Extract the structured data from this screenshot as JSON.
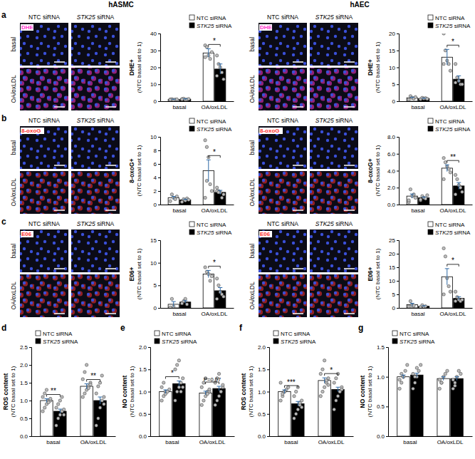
{
  "section_titles": [
    "hASMC",
    "hAEC"
  ],
  "panel_labels": [
    "a",
    "b",
    "c",
    "d",
    "e",
    "f",
    "g"
  ],
  "image_panels": [
    {
      "stain": "DHE",
      "color": "#ff33cc",
      "columns": [
        "NTC siRNA",
        "STK25 siRNA"
      ],
      "rows": [
        "basal",
        "OA/oxLDL"
      ]
    },
    {
      "stain": "DHE",
      "color": "#ff33cc",
      "columns": [
        "NTC siRNA",
        "STK25 siRNA"
      ],
      "rows": [
        "basal",
        "OA/oxLDL"
      ]
    },
    {
      "stain": "8-oxoG",
      "color": "#ff3030",
      "columns": [
        "NTC siRNA",
        "STK25 siRNA"
      ],
      "rows": [
        "basal",
        "OA/oxLDL"
      ]
    },
    {
      "stain": "8-oxoG",
      "color": "#ff3030",
      "columns": [
        "NTC siRNA",
        "STK25 siRNA"
      ],
      "rows": [
        "basal",
        "OA/oxLDL"
      ]
    },
    {
      "stain": "E06",
      "color": "#ff3030",
      "columns": [
        "NTC siRNA",
        "STK25 siRNA"
      ],
      "rows": [
        "basal",
        "OA/oxLDL"
      ]
    },
    {
      "stain": "E06",
      "color": "#ff3030",
      "columns": [
        "NTC siRNA",
        "STK25 siRNA"
      ],
      "rows": [
        "basal",
        "OA/oxLDL"
      ]
    }
  ],
  "chart_data": [
    {
      "type": "bar",
      "y_label": [
        "DHE+",
        "(NTC basal set to 1)"
      ],
      "categories": [
        "basal",
        "OA/oxLDL"
      ],
      "series": [
        {
          "name": "NTC siRNA",
          "color": "#ffffff",
          "values": [
            1,
            28.5
          ],
          "errors": [
            0.2,
            2.5
          ],
          "points": [
            [
              1,
              1.2,
              0.8,
              1,
              1.1,
              0.9
            ],
            [
              33,
              32,
              27,
              25,
              29,
              26
            ]
          ]
        },
        {
          "name": "STK25 siRNA",
          "color": "#000000",
          "values": [
            1.2,
            19
          ],
          "errors": [
            0.2,
            3
          ],
          "points": [
            [
              1.2,
              1.5,
              0.9,
              1,
              1.3,
              1.1
            ],
            [
              27,
              22,
              20,
              17,
              13,
              15
            ]
          ]
        }
      ],
      "ylim": [
        0,
        40
      ],
      "yticks": [
        0,
        10,
        20,
        30,
        40
      ],
      "legend": "top-right",
      "annotations": [
        {
          "x": "OA/oxLDL",
          "text": "*"
        }
      ]
    },
    {
      "type": "bar",
      "y_label": [
        "DHE+",
        "(NTC basal set to 1)"
      ],
      "categories": [
        "basal",
        "OA/oxLDL"
      ],
      "series": [
        {
          "name": "NTC siRNA",
          "color": "#ffffff",
          "values": [
            1,
            13
          ],
          "errors": [
            0.2,
            2.3
          ],
          "points": [
            [
              0.5,
              1.5,
              1,
              0.8,
              1.2
            ],
            [
              20,
              15,
              12,
              11,
              9,
              11
            ]
          ]
        },
        {
          "name": "STK25 siRNA",
          "color": "#000000",
          "values": [
            0.8,
            6.5
          ],
          "errors": [
            0.1,
            1
          ],
          "points": [
            [
              0.6,
              1,
              0.8,
              0.9,
              0.7
            ],
            [
              11,
              7,
              6,
              5,
              5,
              5.5
            ]
          ]
        }
      ],
      "ylim": [
        0,
        20
      ],
      "yticks": [
        0,
        5,
        10,
        15,
        20
      ],
      "legend": "top-right",
      "annotations": [
        {
          "x": "OA/oxLDL",
          "text": "*"
        }
      ]
    },
    {
      "type": "bar",
      "y_label": [
        "8-oxoG+",
        "(NTC basal set to 1)"
      ],
      "categories": [
        "basal",
        "OA/oxLDL"
      ],
      "series": [
        {
          "name": "NTC siRNA",
          "color": "#ffffff",
          "values": [
            1,
            5
          ],
          "errors": [
            0.2,
            1.6
          ],
          "points": [
            [
              0.5,
              1.5,
              1,
              0.8,
              1.2
            ],
            [
              9.5,
              8.5,
              7,
              3,
              2,
              1,
              3.5
            ]
          ]
        },
        {
          "name": "STK25 siRNA",
          "color": "#000000",
          "values": [
            0.7,
            1.8
          ],
          "errors": [
            0.1,
            0.3
          ],
          "points": [
            [
              0.4,
              0.8,
              0.6,
              0.9,
              0.7
            ],
            [
              2.5,
              2,
              1.8,
              1,
              1.5,
              2,
              1.8
            ]
          ]
        }
      ],
      "ylim": [
        0,
        10
      ],
      "yticks": [
        0,
        2,
        4,
        6,
        8,
        10
      ],
      "legend": "top-right",
      "annotations": [
        {
          "x": "OA/oxLDL",
          "text": "*"
        }
      ]
    },
    {
      "type": "bar",
      "y_label": [
        "8-oxoG+",
        "(NTC basal set to 1)"
      ],
      "categories": [
        "basal",
        "OA/oxLDL"
      ],
      "series": [
        {
          "name": "NTC siRNA",
          "color": "#ffffff",
          "values": [
            1,
            4.3
          ],
          "errors": [
            0.25,
            0.4
          ],
          "points": [
            [
              0.3,
              1.8,
              1,
              1.2,
              0.8,
              0.5
            ],
            [
              5.5,
              5,
              4.5,
              4.2,
              3.8,
              3
            ]
          ]
        },
        {
          "name": "STK25 siRNA",
          "color": "#000000",
          "values": [
            0.8,
            2.2
          ],
          "errors": [
            0.1,
            0.4
          ],
          "points": [
            [
              0.5,
              1,
              0.8,
              0.7,
              1.1,
              0.6
            ],
            [
              3.5,
              3,
              2.3,
              2,
              1.5,
              1.2
            ]
          ]
        }
      ],
      "ylim": [
        0,
        8
      ],
      "yticks": [
        {
          "value": 0,
          "label": "0.0"
        },
        {
          "value": 2,
          "label": "2.0"
        },
        {
          "value": 4,
          "label": "4.0"
        },
        {
          "value": 6,
          "label": "6.0"
        },
        {
          "value": 8,
          "label": "8.0"
        }
      ],
      "legend": "top-right",
      "annotations": [
        {
          "x": "OA/oxLDL",
          "text": "**"
        }
      ]
    },
    {
      "type": "bar",
      "y_label": [
        "E06+",
        "(NTC basal set to 1)"
      ],
      "categories": [
        "basal",
        "OA/oxLDL"
      ],
      "series": [
        {
          "name": "NTC siRNA",
          "color": "#ffffff",
          "values": [
            0.8,
            7.5
          ],
          "errors": [
            0.6,
            0.8
          ],
          "points": [
            [
              0.1,
              2,
              0.3
            ],
            [
              9,
              8,
              7.5,
              6,
              7
            ]
          ]
        },
        {
          "name": "STK25 siRNA",
          "color": "#000000",
          "values": [
            1.3,
            3.8
          ],
          "errors": [
            0.3,
            0.7
          ],
          "points": [
            [
              1,
              1.5,
              2,
              0.8
            ],
            [
              6.5,
              5,
              3.5,
              3,
              2.5,
              2
            ]
          ]
        }
      ],
      "ylim": [
        0,
        15
      ],
      "yticks": [
        0,
        5,
        10,
        15
      ],
      "legend": "top-right",
      "annotations": [
        {
          "x": "OA/oxLDL",
          "text": "*"
        }
      ]
    },
    {
      "type": "bar",
      "y_label": [
        "E06+",
        "(NTC basal set to 1)"
      ],
      "categories": [
        "basal",
        "OA/oxLDL"
      ],
      "series": [
        {
          "name": "NTC siRNA",
          "color": "#ffffff",
          "values": [
            1.2,
            11.5
          ],
          "errors": [
            0.5,
            3
          ],
          "points": [
            [
              0.5,
              2.5,
              1,
              0.8
            ],
            [
              22,
              19,
              11,
              8,
              6,
              5
            ]
          ]
        },
        {
          "name": "STK25 siRNA",
          "color": "#000000",
          "values": [
            0.6,
            3.5
          ],
          "errors": [
            0.2,
            0.6
          ],
          "points": [
            [
              0.3,
              1,
              0.4,
              0.6
            ],
            [
              6,
              4,
              3,
              2.5,
              3,
              2.5
            ]
          ]
        }
      ],
      "ylim": [
        0,
        25
      ],
      "yticks": [
        0,
        5,
        10,
        15,
        20,
        25
      ],
      "legend": "top-right",
      "annotations": [
        {
          "x": "OA/oxLDL",
          "text": "*"
        }
      ]
    },
    {
      "type": "bar",
      "y_label": [
        "ROS content",
        "(NTC basal set to 1)"
      ],
      "categories": [
        "basal",
        "OA/oxLDL"
      ],
      "series": [
        {
          "name": "NTC siRNA",
          "color": "#ffffff",
          "values": [
            1.0,
            1.4
          ],
          "errors": [
            0.05,
            0.07
          ],
          "points": [
            [
              0.7,
              0.8,
              0.9,
              1,
              1,
              1.1,
              1.2,
              1.3,
              0.95,
              1.05
            ],
            [
              1.1,
              1.2,
              1.3,
              1.4,
              1.5,
              1.6,
              1.8,
              2.0,
              1.35,
              1.45
            ]
          ]
        },
        {
          "name": "STK25 siRNA",
          "color": "#000000",
          "values": [
            0.7,
            1.0
          ],
          "errors": [
            0.06,
            0.1
          ],
          "points": [
            [
              0.3,
              0.5,
              0.6,
              0.7,
              0.75,
              0.8,
              0.9,
              1,
              1.1,
              0.6
            ],
            [
              0.3,
              0.5,
              0.8,
              1,
              1.1,
              1.2,
              1.4,
              1.5,
              1.7,
              0.9
            ]
          ]
        }
      ],
      "ylim": [
        0,
        2.5
      ],
      "yticks": [
        {
          "value": 0,
          "label": "0.0"
        },
        0.5,
        {
          "value": 1,
          "label": "1.0"
        },
        1.5,
        {
          "value": 2,
          "label": "2.0"
        },
        2.5
      ],
      "legend": "top-left",
      "annotations": [
        {
          "x": "basal",
          "text": "**"
        },
        {
          "x": "OA/oxLDL",
          "text": "**"
        }
      ]
    },
    {
      "type": "bar",
      "y_label": [
        "NO content",
        "(NTC basal set to 1)"
      ],
      "categories": [
        "basal",
        "OA/oxLDL"
      ],
      "series": [
        {
          "name": "NTC siRNA",
          "color": "#ffffff",
          "values": [
            1.0,
            0.97
          ],
          "errors": [
            0.04,
            0.04
          ],
          "points": [
            [
              0.8,
              0.9,
              1,
              1,
              1.05,
              1.1,
              1.2,
              0.95
            ],
            [
              0.7,
              0.8,
              0.9,
              1,
              1,
              1.1,
              1.2,
              1.3,
              0.95,
              1.05
            ]
          ]
        },
        {
          "name": "STK25 siRNA",
          "color": "#000000",
          "values": [
            1.18,
            1.07
          ],
          "errors": [
            0.06,
            0.05
          ],
          "points": [
            [
              0.8,
              1,
              1.1,
              1.2,
              1.3,
              1.5,
              1.6,
              1.7,
              1.0,
              1.1
            ],
            [
              0.7,
              0.8,
              0.9,
              1,
              1.1,
              1.2,
              1.3,
              1.4,
              1.0,
              1.15
            ]
          ]
        }
      ],
      "ylim": [
        0,
        2
      ],
      "yticks": [
        {
          "value": 0,
          "label": "0.0"
        },
        0.5,
        {
          "value": 1,
          "label": "1.0"
        },
        1.5,
        {
          "value": 2,
          "label": "2.0"
        }
      ],
      "legend": "top-left",
      "annotations": [
        {
          "x": "basal",
          "text": "*"
        },
        {
          "x": "OA/oxLDL",
          "text": "P=0.07"
        }
      ]
    },
    {
      "type": "bar",
      "y_label": [
        "ROS content",
        "(NTC basal set to 1)"
      ],
      "categories": [
        "basal",
        "OA/oxLDL"
      ],
      "series": [
        {
          "name": "NTC siRNA",
          "color": "#ffffff",
          "values": [
            1.0,
            1.25
          ],
          "errors": [
            0.04,
            0.06
          ],
          "points": [
            [
              0.8,
              0.9,
              1,
              1.05,
              1.1,
              1.2,
              0.95,
              1
            ],
            [
              0.9,
              1,
              1.1,
              1.2,
              1.3,
              1.4,
              1.5,
              1.7,
              1.25,
              1.15
            ]
          ]
        },
        {
          "name": "STK25 siRNA",
          "color": "#000000",
          "values": [
            0.73,
            1.05
          ],
          "errors": [
            0.05,
            0.05
          ],
          "points": [
            [
              0.4,
              0.5,
              0.6,
              0.7,
              0.8,
              0.9,
              1,
              1.1,
              0.75,
              0.65
            ],
            [
              0.6,
              0.8,
              0.9,
              1,
              1.1,
              1.2,
              1.3,
              1.4,
              1.0,
              1.05
            ]
          ]
        }
      ],
      "ylim": [
        0,
        2
      ],
      "yticks": [
        {
          "value": 0,
          "label": "0.0"
        },
        0.5,
        {
          "value": 1,
          "label": "1.0"
        },
        1.5,
        {
          "value": 2,
          "label": "2.0"
        }
      ],
      "legend": "top-left",
      "annotations": [
        {
          "x": "basal",
          "text": "***"
        },
        {
          "x": "OA/oxLDL",
          "text": "*"
        }
      ]
    },
    {
      "type": "bar",
      "y_label": [
        "NO content",
        "(NTC basal set to 1)"
      ],
      "categories": [
        "basal",
        "OA/oxLDL"
      ],
      "series": [
        {
          "name": "NTC siRNA",
          "color": "#ffffff",
          "values": [
            1.0,
            0.97
          ],
          "errors": [
            0.03,
            0.03
          ],
          "points": [
            [
              0.8,
              0.9,
              1,
              1.1,
              1.2,
              0.95,
              1.05,
              1
            ],
            [
              0.8,
              0.9,
              1,
              1.05,
              1.1,
              0.95,
              0.9
            ]
          ]
        },
        {
          "name": "STK25 siRNA",
          "color": "#000000",
          "values": [
            1.03,
            0.97
          ],
          "errors": [
            0.03,
            0.03
          ],
          "points": [
            [
              0.8,
              0.9,
              1,
              1.1,
              1.2,
              1.05,
              1.0,
              1.15
            ],
            [
              0.8,
              0.9,
              1,
              1.1,
              1.05,
              0.95,
              0.85
            ]
          ]
        }
      ],
      "ylim": [
        0,
        1.5
      ],
      "yticks": [
        {
          "value": 0,
          "label": "0.0"
        },
        0.5,
        {
          "value": 1,
          "label": "1.0"
        },
        1.5
      ],
      "legend": "top-left"
    }
  ]
}
